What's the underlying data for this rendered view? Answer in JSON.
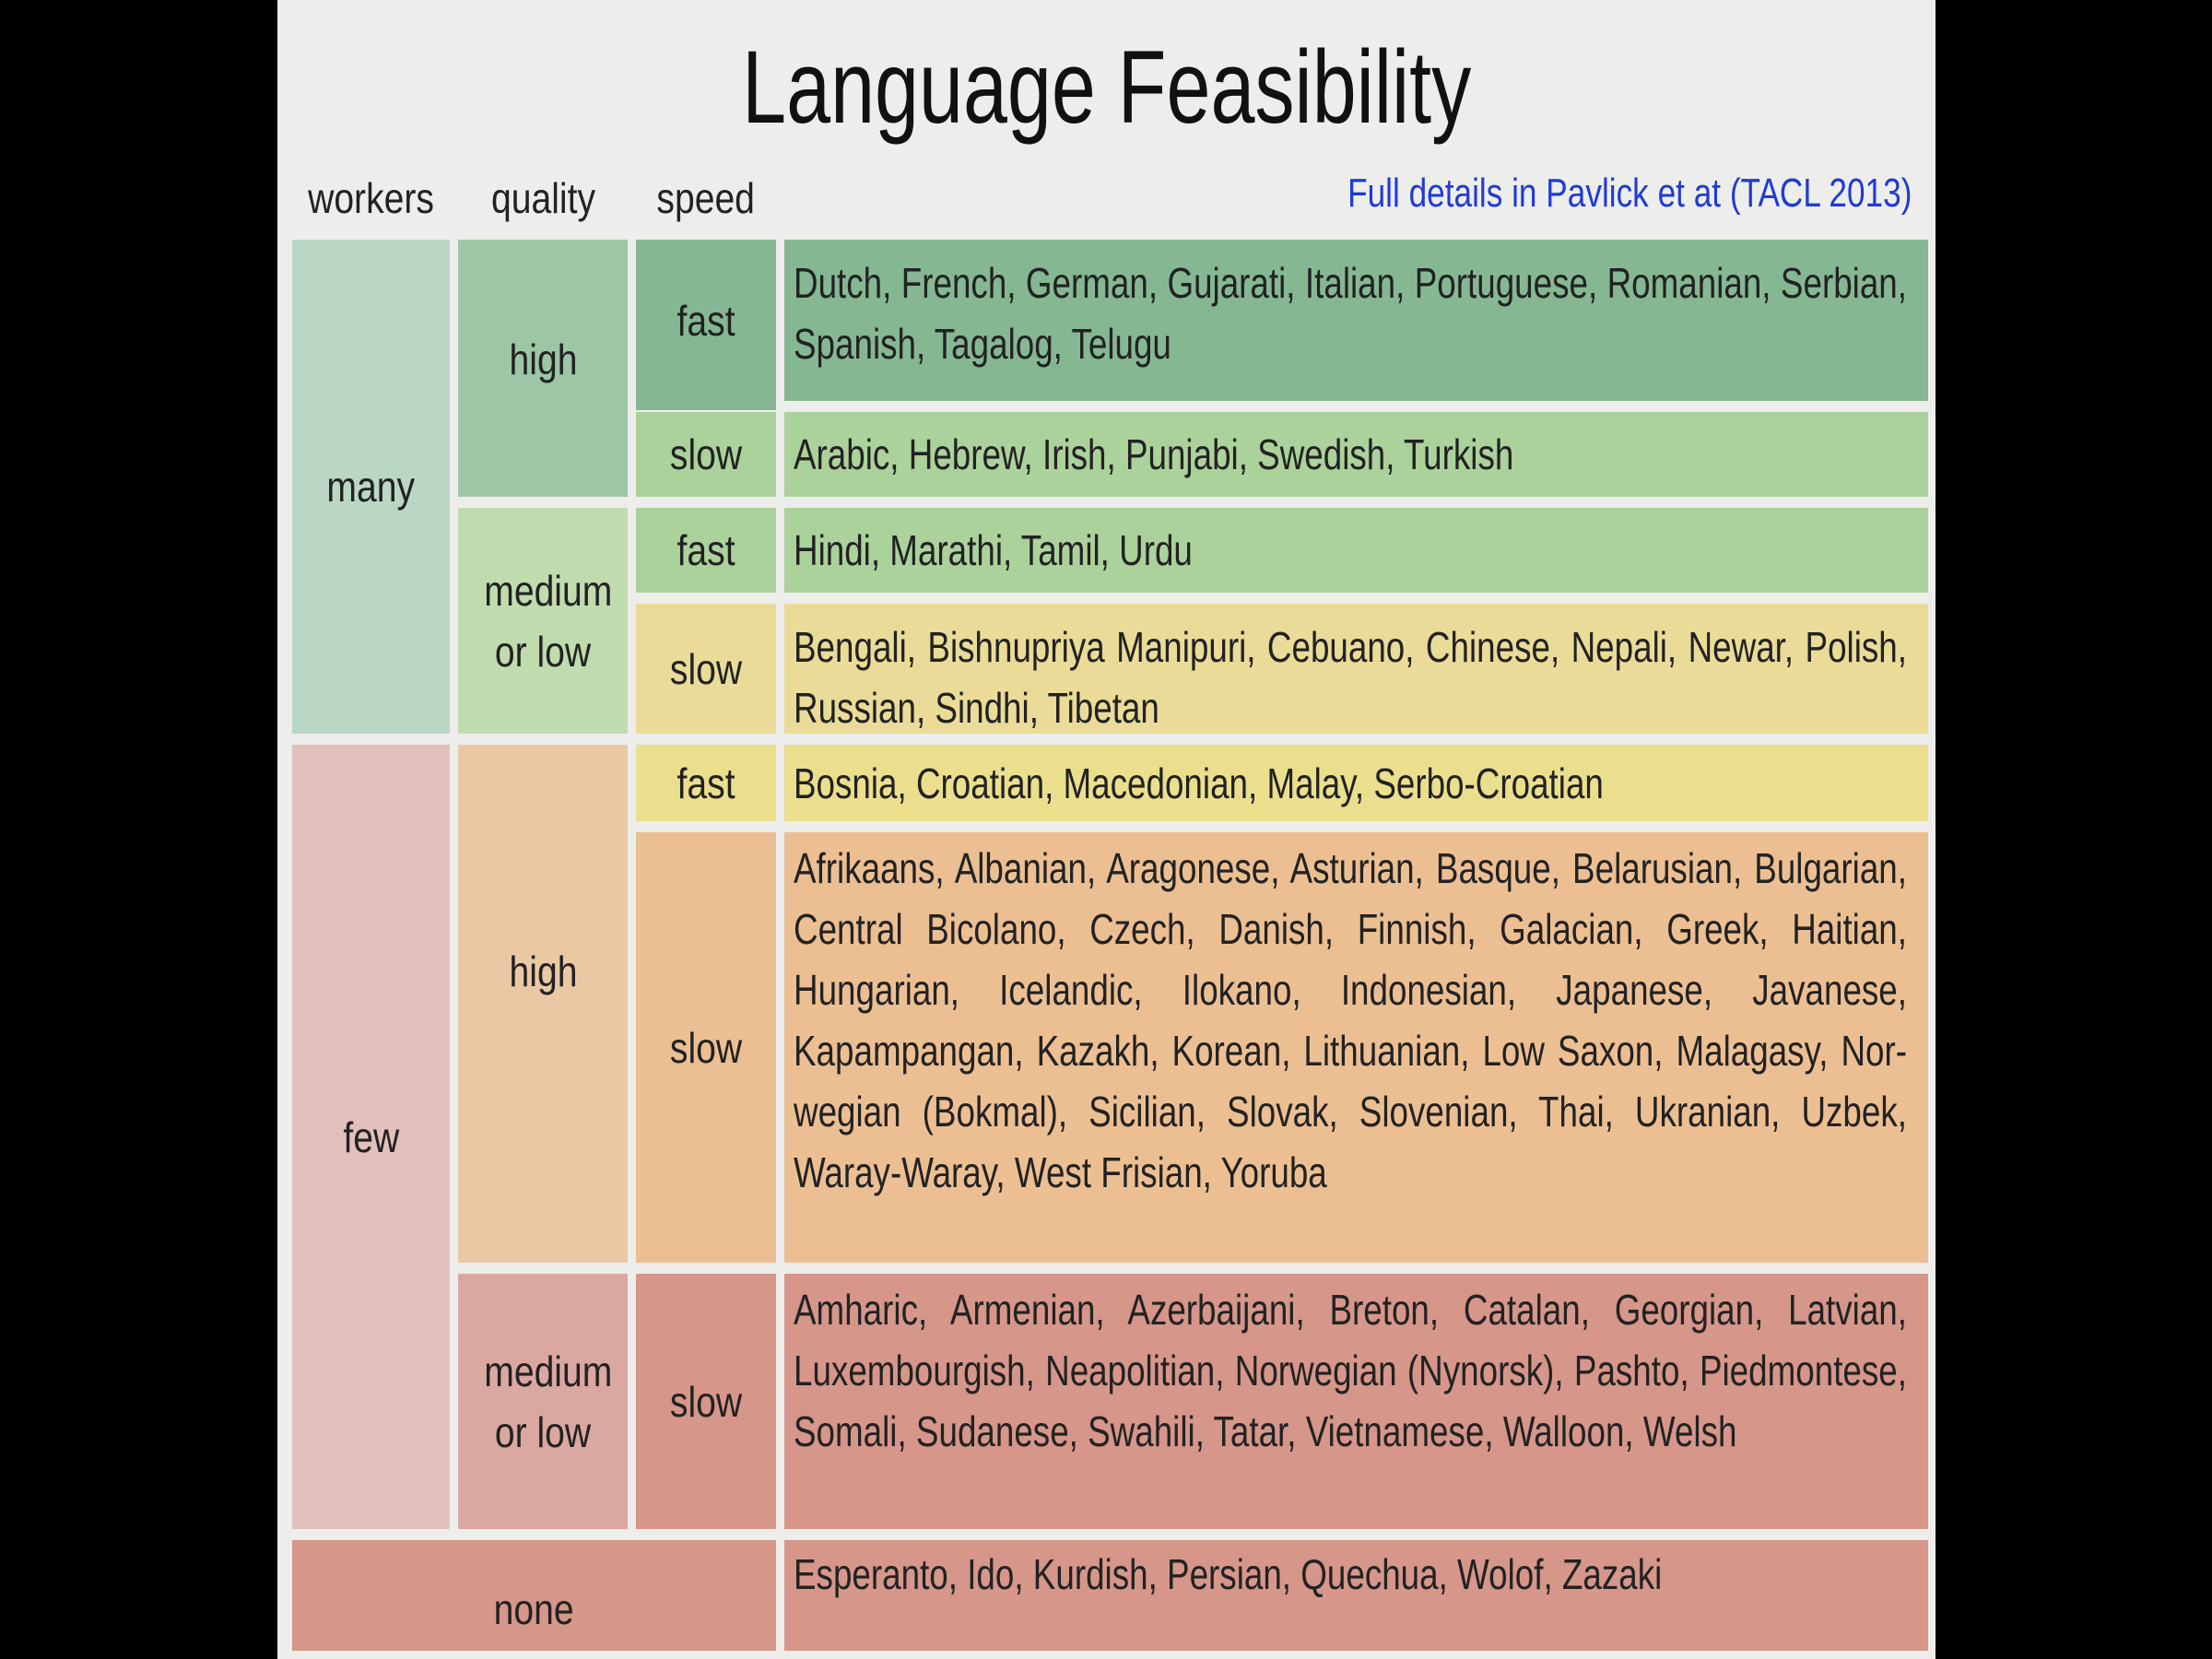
{
  "title": "Language Feasibility",
  "headers": {
    "workers": "workers",
    "quality": "quality",
    "speed": "speed"
  },
  "reference_link": "Full details in Pavlick et at (TACL 2013)",
  "groups": {
    "many": "many",
    "few": "few",
    "none": "none",
    "high_many": "high",
    "medium_many": "medium or low",
    "high_few": "high",
    "medium_few": "medium or low"
  },
  "rows": [
    {
      "speed": "fast",
      "languages": "Dutch, French, German, Gujarati, Italian, Portuguese, Romanian, Serbian, Spanish, Tagalog, Telugu",
      "color": "#86b793"
    },
    {
      "speed": "slow",
      "languages": "Arabic, Hebrew, Irish, Punjabi, Swedish, Turkish",
      "color": "#abd29b"
    },
    {
      "speed": "fast",
      "languages": "Hindi, Marathi, Tamil, Urdu",
      "color": "#abd29b"
    },
    {
      "speed": "slow",
      "languages": "Bengali, Bishnupriya Manipuri, Cebuano, Chinese, Nepali, Newar, Polish, Russian, Sindhi, Tibetan",
      "color": "#eadb98"
    },
    {
      "speed": "fast",
      "languages": "Bosnia, Croatian, Macedonian, Malay, Serbo-Croatian",
      "color": "#ebdf8e"
    },
    {
      "speed": "slow",
      "languages": "Afrikaans, Albanian, Aragonese, Asturian, Basque, Belarusian, Bulgarian, Central Bicolano, Czech, Danish, Finnish, Galacian, Greek, Haitian, Hungarian, Icelandic, Ilokano, Indonesian, Japanese, Javanese, Kapampangan, Kazakh, Korean, Lithuanian, Low Saxon, Malagasy, Nor- wegian (Bokmal), Sicilian, Slovak, Slovenian, Thai, Ukranian, Uzbek, Waray-Waray, West Frisian, Yoruba",
      "color": "#ecbf93"
    },
    {
      "speed": "slow",
      "languages": "Amharic, Armenian, Azerbaijani, Breton, Catalan, Georgian, Latvian, Luxembourgish, Neapolitian, Norwegian (Nynorsk), Pashto, Piedmontese, Somali, Sudanese, Swahili, Tatar, Vietnamese, Walloon, Welsh",
      "color": "#d6968a"
    },
    {
      "speed": "",
      "languages": "Esperanto, Ido, Kurdish, Persian, Quechua, Wolof, Zazaki",
      "color": "#d6968a"
    }
  ],
  "colors": {
    "many": "#bad7c5",
    "high_many": "#9cc6a6",
    "medium_many": "#c0dcaf",
    "few": "#e2c0bb",
    "high_few": "#ebc8a4",
    "medium_few": "#dba8a1",
    "link": "#1f3bd4"
  }
}
